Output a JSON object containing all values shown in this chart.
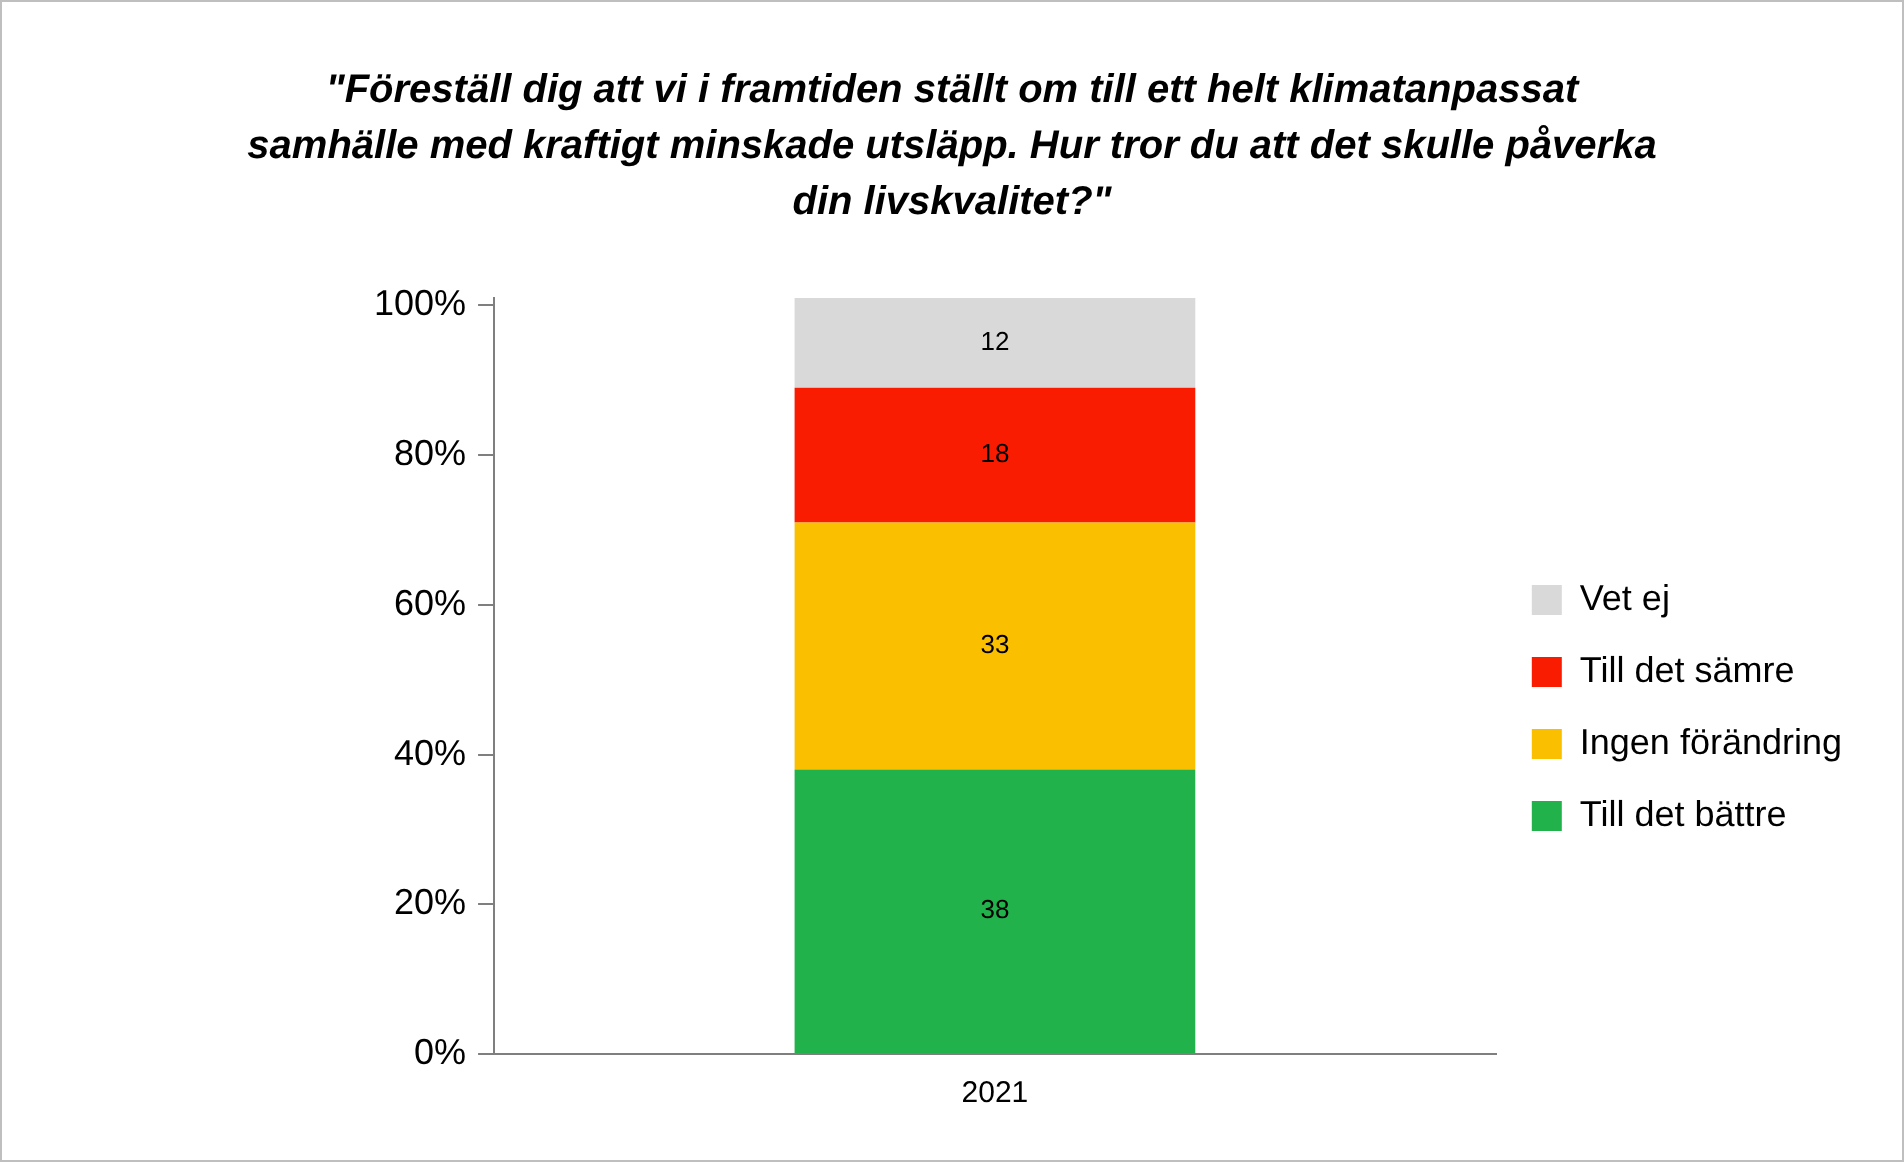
{
  "chart_data": {
    "type": "bar",
    "title": "\"Föreställ dig att vi i framtiden ställt om till ett helt klimatanpassat samhälle med kraftigt minskade utsläpp. Hur tror du att det skulle påverka din livskvalitet?\"",
    "categories": [
      "2021"
    ],
    "series": [
      {
        "name": "Till det bättre",
        "color": "#21b24b",
        "values": [
          38
        ]
      },
      {
        "name": "Ingen förändring",
        "color": "#fac000",
        "values": [
          33
        ]
      },
      {
        "name": "Till det sämre",
        "color": "#fa1c00",
        "values": [
          18
        ]
      },
      {
        "name": "Vet ej",
        "color": "#d9d9d9",
        "values": [
          12
        ]
      }
    ],
    "stacked": true,
    "ylim": [
      0,
      101
    ],
    "yticks": [
      {
        "value": 0,
        "label": "0%"
      },
      {
        "value": 20,
        "label": "20%"
      },
      {
        "value": 40,
        "label": "40%"
      },
      {
        "value": 60,
        "label": "60%"
      },
      {
        "value": 80,
        "label": "80%"
      },
      {
        "value": 100,
        "label": "100%"
      }
    ],
    "grid": false,
    "legend": "right",
    "data_labels": true
  }
}
